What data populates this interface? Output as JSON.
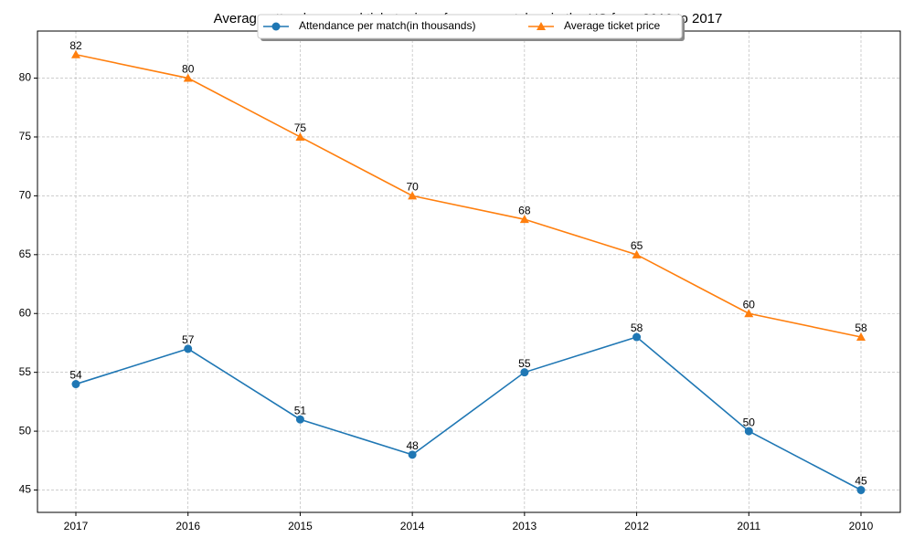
{
  "chart_data": {
    "type": "line",
    "title": "Average attendance and ticket price of soccer matches in the US from 2010 to 2017",
    "categories": [
      "2017",
      "2016",
      "2015",
      "2014",
      "2013",
      "2012",
      "2011",
      "2010"
    ],
    "series": [
      {
        "name": "Attendance per match(in thousands)",
        "color": "#1f77b4",
        "marker": "circle",
        "values": [
          54,
          57,
          51,
          48,
          55,
          58,
          50,
          45
        ]
      },
      {
        "name": "Average ticket price",
        "color": "#ff7f0e",
        "marker": "triangle",
        "values": [
          82,
          80,
          75,
          70,
          68,
          65,
          60,
          58
        ]
      }
    ],
    "ylim": [
      43.1,
      84
    ],
    "yticks": [
      45,
      50,
      55,
      60,
      65,
      70,
      75,
      80
    ],
    "grid": true,
    "legend": "top"
  }
}
